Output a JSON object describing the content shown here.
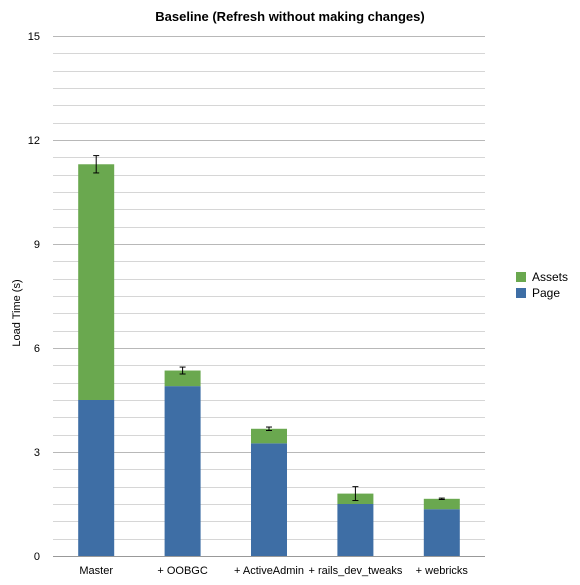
{
  "chart_data": {
    "type": "bar",
    "stacked": true,
    "title": "Baseline (Refresh without making changes)",
    "xlabel": "",
    "ylabel": "Load Time (s)",
    "ylim": [
      0,
      15
    ],
    "yticks": [
      0,
      3,
      6,
      9,
      12,
      15
    ],
    "minor_grid_step": 0.5,
    "grid": true,
    "legend_position": "right",
    "categories": [
      "Master",
      "+ OOBGC",
      "+ ActiveAdmin",
      "+ rails_dev_tweaks",
      "+ webricks"
    ],
    "series": [
      {
        "name": "Page",
        "color": "#3e6ea5",
        "values": [
          4.5,
          4.9,
          3.25,
          1.5,
          1.35
        ]
      },
      {
        "name": "Assets",
        "color": "#6aa84f",
        "values": [
          6.8,
          0.45,
          0.42,
          0.3,
          0.3
        ]
      }
    ],
    "error_bars": [
      {
        "center": 11.3,
        "low": 11.05,
        "high": 11.55
      },
      {
        "center": 5.35,
        "low": 5.25,
        "high": 5.45
      },
      {
        "center": 3.67,
        "low": 3.62,
        "high": 3.72
      },
      {
        "center": 1.8,
        "low": 1.6,
        "high": 2.0
      },
      {
        "center": 1.65,
        "low": 1.63,
        "high": 1.67
      }
    ],
    "legend_order": [
      "Assets",
      "Page"
    ]
  }
}
